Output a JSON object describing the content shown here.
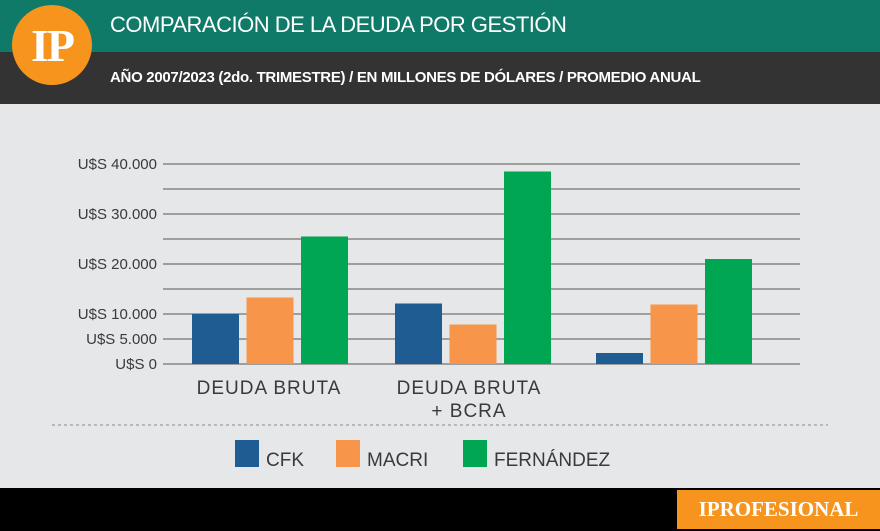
{
  "header": {
    "logo_text": "IP",
    "title": "COMPARACIÓN DE LA DEUDA POR GESTIÓN",
    "subtitle": "AÑO 2007/2023 (2do. TRIMESTRE) / EN MILLONES DE DÓLARES / PROMEDIO ANUAL"
  },
  "footer": {
    "brand": "IPROFESIONAL"
  },
  "colors": {
    "header_bg": "#0e7a67",
    "subheader_bg": "#333333",
    "accent": "#f7941d",
    "cfk": "#1f5c91",
    "macri": "#f7964a",
    "fernandez": "#00a651"
  },
  "chart_data": {
    "type": "bar",
    "title": "COMPARACIÓN DE LA DEUDA POR GESTIÓN",
    "categories": [
      "DEUDA BRUTA",
      "DEUDA BRUTA + BCRA",
      ""
    ],
    "series": [
      {
        "name": "CFK",
        "values": [
          10000,
          12100,
          2200
        ]
      },
      {
        "name": "MACRI",
        "values": [
          13300,
          7900,
          11900
        ]
      },
      {
        "name": "FERNÁNDEZ",
        "values": [
          25500,
          38500,
          21000
        ]
      }
    ],
    "yticks": [
      0,
      5000,
      10000,
      20000,
      30000,
      40000
    ],
    "ytick_labels": [
      "U$S 0",
      "U$S 5.000",
      "U$S 10.000",
      "U$S 20.000",
      "U$S 30.000",
      "U$S 40.000"
    ],
    "ylim": [
      0,
      40000
    ],
    "xlabel": "",
    "ylabel": "",
    "grid": true,
    "legend_position": "bottom"
  }
}
